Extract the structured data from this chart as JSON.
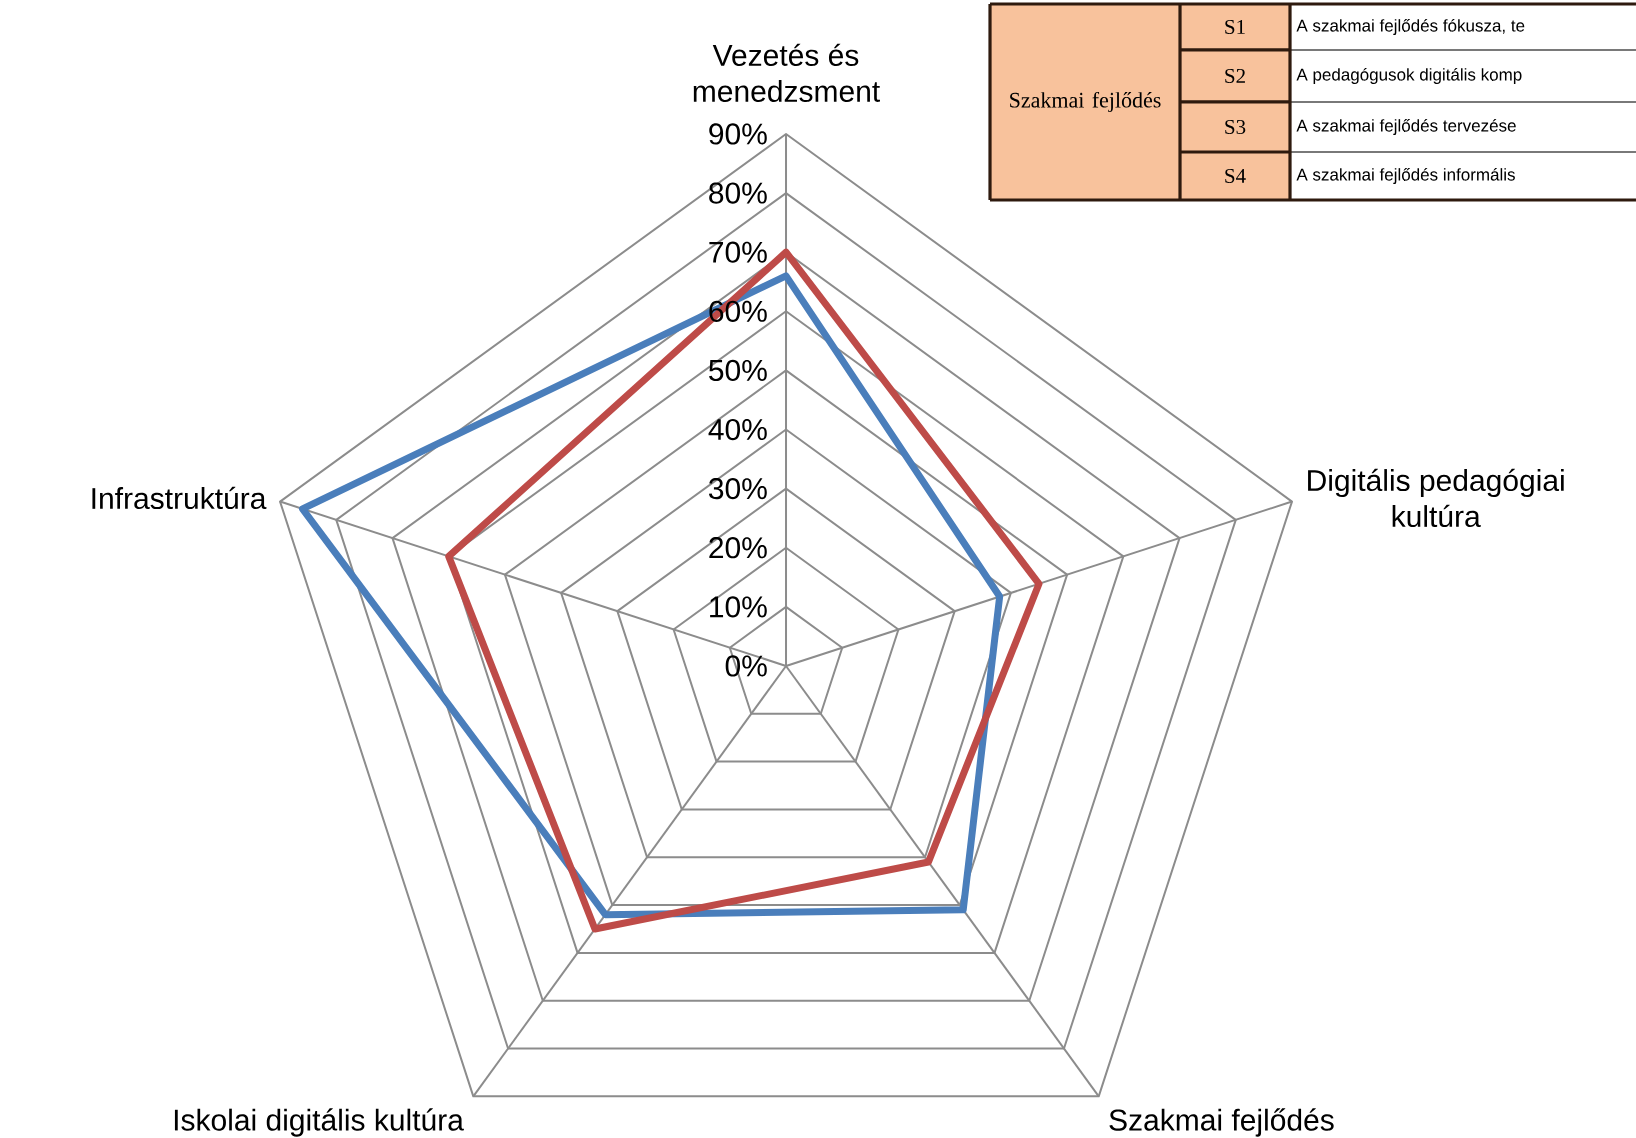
{
  "chart_data": {
    "type": "radar",
    "categories": [
      "Vezetés és menedzsment",
      "Digitális pedagógiai kultúra",
      "Szakmai fejlődés",
      "Iskolai digitális kultúra",
      "Infrastruktúra"
    ],
    "series": [
      {
        "color": "#4a7ebb",
        "values": [
          66,
          38,
          51,
          52,
          86
        ]
      },
      {
        "color": "#be4b48",
        "values": [
          70,
          45,
          41,
          55,
          60
        ]
      }
    ],
    "ylim": [
      0,
      90
    ],
    "yticks": [
      {
        "value": 0,
        "label": "0%"
      },
      {
        "value": 10,
        "label": "10%"
      },
      {
        "value": 20,
        "label": "20%"
      },
      {
        "value": 30,
        "label": "30%"
      },
      {
        "value": 40,
        "label": "40%"
      },
      {
        "value": 50,
        "label": "50%"
      },
      {
        "value": 60,
        "label": "60%"
      },
      {
        "value": 70,
        "label": "70%"
      },
      {
        "value": 80,
        "label": "80%"
      },
      {
        "value": 90,
        "label": "90%"
      }
    ],
    "grid": true,
    "annotations": [
      "Szakmai fejlődés",
      "S1",
      "S2",
      "S3",
      "S4",
      "A szakmai fejlődés fókusza, te",
      "A pedagógusok digitális komp",
      "A szakmai fejlődés tervezése",
      "A szakmai fejlődés informális"
    ]
  }
}
